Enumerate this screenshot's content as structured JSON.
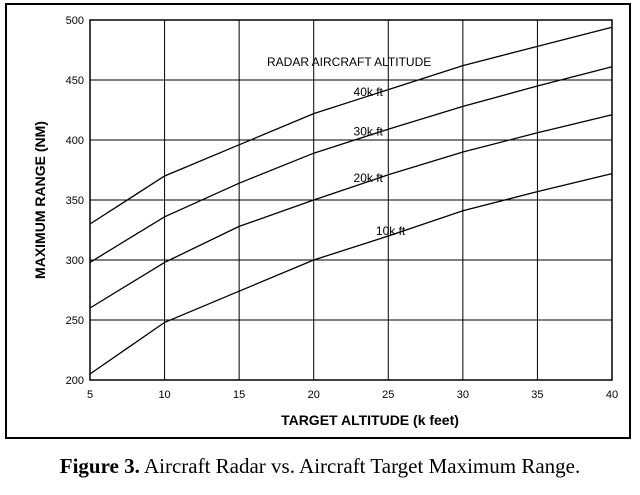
{
  "chart_data": {
    "type": "line",
    "title": "",
    "xlabel": "TARGET ALTITUDE (k feet)",
    "ylabel": "MAXIMUM RANGE (NM)",
    "xlim": [
      5,
      40
    ],
    "ylim": [
      200,
      500
    ],
    "xticks": [
      5,
      10,
      15,
      20,
      25,
      30,
      35,
      40
    ],
    "yticks": [
      200,
      250,
      300,
      350,
      400,
      450,
      500
    ],
    "grid": true,
    "x": [
      5,
      10,
      15,
      20,
      25,
      30,
      35,
      40
    ],
    "legend_title": "RADAR AIRCRAFT ALTITUDE",
    "series": [
      {
        "name": "40k ft",
        "values": [
          330,
          370,
          396,
          422,
          442,
          462,
          478,
          494
        ]
      },
      {
        "name": "30k ft",
        "values": [
          298,
          336,
          364,
          389,
          409,
          428,
          445,
          461
        ]
      },
      {
        "name": "20k ft",
        "values": [
          260,
          298,
          328,
          350,
          371,
          390,
          406,
          421
        ]
      },
      {
        "name": "10k ft",
        "values": [
          205,
          248,
          274,
          300,
          320,
          341,
          357,
          372
        ]
      }
    ]
  },
  "caption": {
    "label": "Figure 3.",
    "text": " Aircraft Radar vs. Aircraft Target Maximum Range."
  },
  "colors": {
    "line": "#000000",
    "grid": "#000000",
    "background": "#ffffff"
  }
}
